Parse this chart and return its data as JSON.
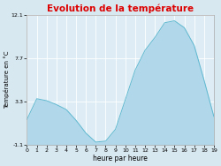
{
  "title": "Evolution de la température",
  "xlabel": "heure par heure",
  "ylabel": "Température en °C",
  "title_color": "#dd0000",
  "background_color": "#d8e8f0",
  "plot_bg_color": "#deedf5",
  "fill_color": "#b0d8ea",
  "line_color": "#60b8d0",
  "ylim": [
    -1.1,
    12.1
  ],
  "yticks": [
    -1.1,
    3.3,
    7.7,
    12.1
  ],
  "xlim": [
    0,
    19
  ],
  "xticks": [
    0,
    1,
    2,
    3,
    4,
    5,
    6,
    7,
    8,
    9,
    10,
    11,
    12,
    13,
    14,
    15,
    16,
    17,
    18,
    19
  ],
  "hours": [
    0,
    1,
    2,
    3,
    4,
    5,
    6,
    7,
    8,
    9,
    10,
    11,
    12,
    13,
    14,
    15,
    16,
    17,
    18,
    19
  ],
  "temps": [
    1.5,
    3.6,
    3.4,
    3.0,
    2.5,
    1.4,
    0.1,
    -0.8,
    -0.7,
    0.5,
    3.5,
    6.5,
    8.5,
    9.8,
    11.3,
    11.5,
    10.8,
    9.0,
    5.5,
    1.8
  ],
  "grid_color": "#ffffff",
  "spine_color": "#aaaaaa",
  "tick_label_fontsize": 4.5,
  "ylabel_fontsize": 5,
  "xlabel_fontsize": 5.5,
  "title_fontsize": 7.5
}
